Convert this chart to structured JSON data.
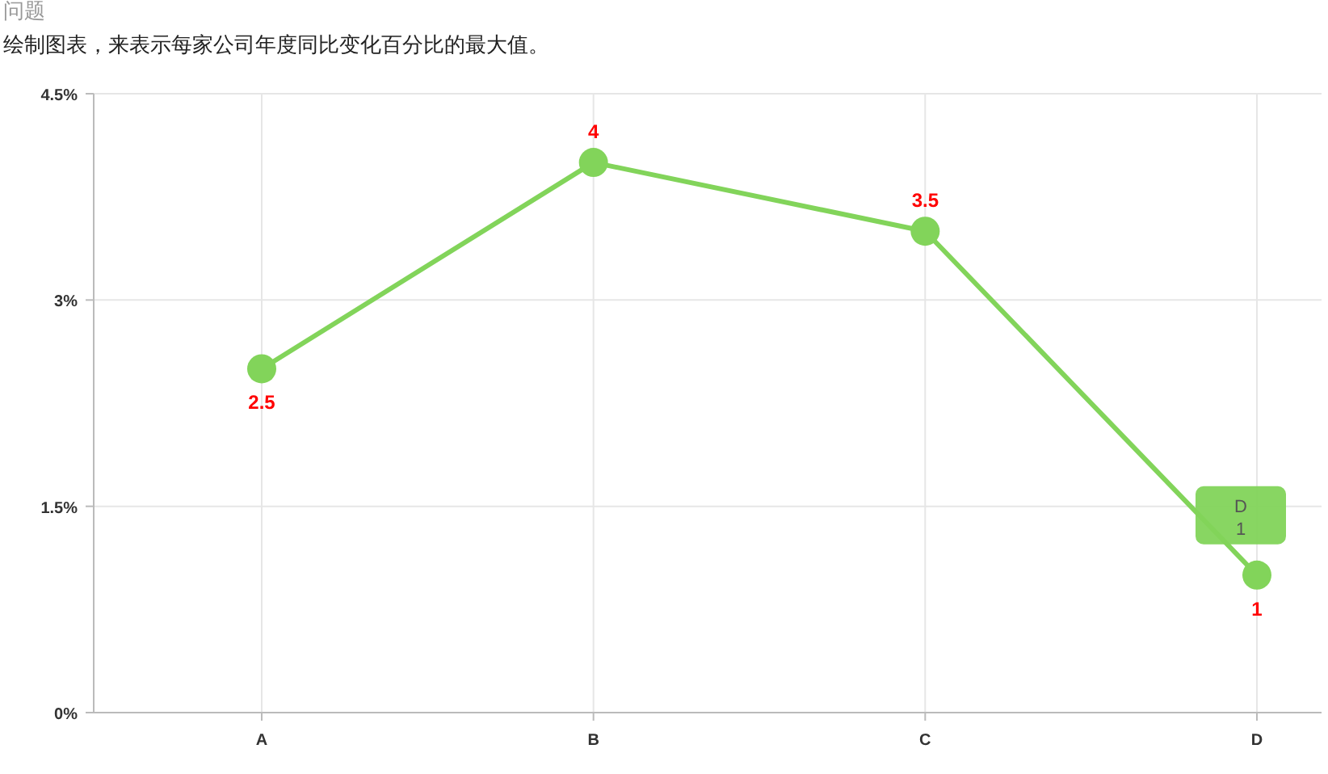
{
  "chart_data": {
    "type": "line",
    "title": "问题",
    "subtitle": "绘制图表，来表示每家公司年度同比变化百分比的最大值。",
    "categories": [
      "A",
      "B",
      "C",
      "D"
    ],
    "series": [
      {
        "color": "#82d45a",
        "values": [
          2.5,
          4,
          3.5,
          1
        ]
      }
    ],
    "ylim": [
      0,
      4.5
    ],
    "yticks": [
      {
        "value": 0,
        "label": "0%"
      },
      {
        "value": 1.5,
        "label": "1.5%"
      },
      {
        "value": 3,
        "label": "3%"
      },
      {
        "value": 4.5,
        "label": "4.5%"
      }
    ],
    "grid": true,
    "marker": "circle",
    "line_style": "solid",
    "data_labels": true,
    "annotations": [
      {
        "text": "D\n1",
        "x": "D",
        "y": 1
      }
    ]
  }
}
